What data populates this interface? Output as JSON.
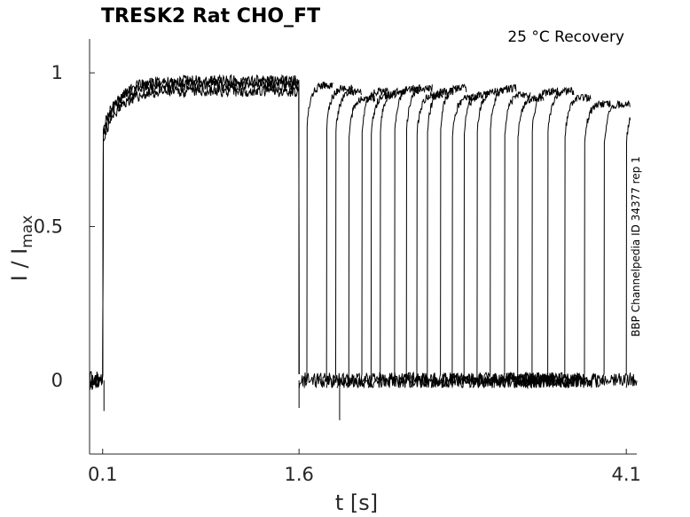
{
  "chart_data": {
    "type": "line",
    "title": "TRESK2  Rat  CHO_FT",
    "annotation": "25 °C  Recovery",
    "side_note": "BBP Channelpedia ID 34377 rep 1",
    "xlabel": "t [s]",
    "ylabel_main": "I / I",
    "ylabel_sub": "max",
    "xlim": [
      0.0,
      4.18
    ],
    "ylim": [
      -0.24,
      1.11
    ],
    "xticks": [
      0.1,
      1.6,
      4.1
    ],
    "xtick_labels": [
      "0.1",
      "1.6",
      "4.1"
    ],
    "yticks": [
      0,
      0.5,
      1
    ],
    "ytick_labels": [
      "0",
      "0.5",
      "1"
    ],
    "grid": false,
    "line_color": "#000000",
    "protocol": {
      "pre_pulse_on": 0.1,
      "pre_pulse_off": 1.6,
      "initial_level": 0.8,
      "steady_level": 0.96,
      "trace_end": 4.18
    },
    "recovery_series": [
      {
        "start": 1.6,
        "end": 1.66,
        "peak": 0.96
      },
      {
        "start": 1.64,
        "end": 1.81,
        "peak": 0.95
      },
      {
        "start": 1.73,
        "end": 1.88,
        "peak": 0.94
      },
      {
        "start": 1.81,
        "end": 1.98,
        "peak": 0.92
      },
      {
        "start": 1.89,
        "end": 2.08,
        "peak": 0.94
      },
      {
        "start": 1.97,
        "end": 2.15,
        "peak": 0.93
      },
      {
        "start": 2.05,
        "end": 2.22,
        "peak": 0.94
      },
      {
        "start": 2.13,
        "end": 2.33,
        "peak": 0.95
      },
      {
        "start": 2.21,
        "end": 2.42,
        "peak": 0.95
      },
      {
        "start": 2.29,
        "end": 2.5,
        "peak": 0.93
      },
      {
        "start": 2.37,
        "end": 2.58,
        "peak": 0.94
      },
      {
        "start": 2.45,
        "end": 2.68,
        "peak": 0.95
      },
      {
        "start": 2.53,
        "end": 2.77,
        "peak": 0.92
      },
      {
        "start": 2.61,
        "end": 2.86,
        "peak": 0.93
      },
      {
        "start": 2.69,
        "end": 2.96,
        "peak": 0.94
      },
      {
        "start": 2.77,
        "end": 3.06,
        "peak": 0.95
      },
      {
        "start": 2.85,
        "end": 3.17,
        "peak": 0.93
      },
      {
        "start": 2.93,
        "end": 3.27,
        "peak": 0.92
      },
      {
        "start": 3.01,
        "end": 3.38,
        "peak": 0.94
      },
      {
        "start": 3.09,
        "end": 3.5,
        "peak": 0.94
      },
      {
        "start": 3.17,
        "end": 3.63,
        "peak": 0.92
      },
      {
        "start": 3.25,
        "end": 3.78,
        "peak": 0.9
      },
      {
        "start": 3.33,
        "end": 3.93,
        "peak": 0.9
      },
      {
        "start": 3.41,
        "end": 4.1,
        "peak": 0.9
      }
    ]
  }
}
